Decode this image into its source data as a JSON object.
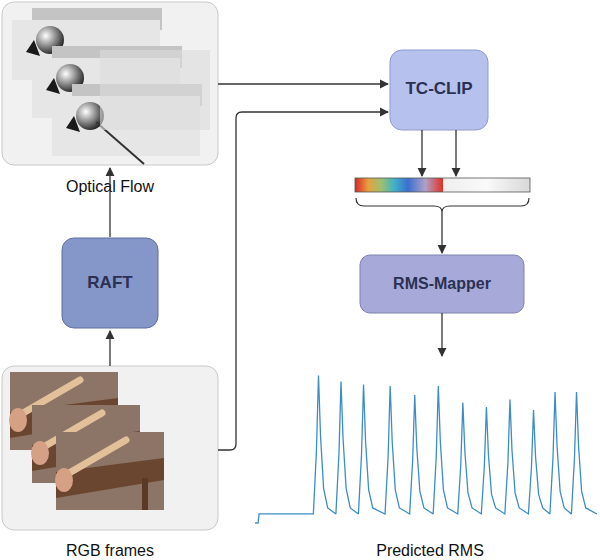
{
  "nodes": [
    {
      "label": "Optical Flow"
    },
    {
      "label": "RAFT"
    },
    {
      "label": "RGB frames"
    },
    {
      "label": "TC-CLIP"
    },
    {
      "label": "RMS-Mapper"
    },
    {
      "label": "Predicted RMS"
    }
  ],
  "chart_data": {
    "type": "line",
    "color": "#3c8dc5",
    "tick_labels": false,
    "xlim": [
      0,
      334
    ],
    "ylim": [
      0,
      1.05
    ],
    "x": [
      0,
      3,
      4,
      50,
      57,
      60,
      62,
      64,
      67,
      71,
      79,
      82,
      84,
      86,
      89,
      93,
      101,
      104,
      106,
      108,
      111,
      115,
      127,
      130,
      132,
      134,
      137,
      141,
      151,
      154,
      156,
      158,
      161,
      165,
      174,
      177,
      179,
      181,
      184,
      188,
      198,
      201,
      203,
      205,
      208,
      212,
      221,
      224,
      226,
      228,
      231,
      235,
      244,
      247,
      249,
      251,
      254,
      258,
      267,
      270,
      272,
      274,
      277,
      281,
      288,
      291,
      293,
      295,
      298,
      302,
      309,
      312,
      314,
      316,
      319,
      323,
      334
    ],
    "values": [
      0.02,
      0.02,
      0.08,
      0.08,
      0.08,
      0.5,
      1.0,
      0.6,
      0.25,
      0.12,
      0.08,
      0.48,
      0.96,
      0.58,
      0.25,
      0.12,
      0.08,
      0.47,
      0.94,
      0.56,
      0.24,
      0.12,
      0.08,
      0.46,
      0.93,
      0.56,
      0.24,
      0.12,
      0.08,
      0.44,
      0.87,
      0.52,
      0.23,
      0.12,
      0.08,
      0.46,
      0.93,
      0.56,
      0.24,
      0.12,
      0.08,
      0.41,
      0.82,
      0.49,
      0.22,
      0.12,
      0.08,
      0.4,
      0.79,
      0.47,
      0.21,
      0.12,
      0.08,
      0.42,
      0.84,
      0.5,
      0.22,
      0.12,
      0.08,
      0.39,
      0.77,
      0.46,
      0.21,
      0.12,
      0.08,
      0.45,
      0.89,
      0.53,
      0.23,
      0.12,
      0.08,
      0.45,
      0.89,
      0.53,
      0.23,
      0.12,
      0.08
    ]
  }
}
